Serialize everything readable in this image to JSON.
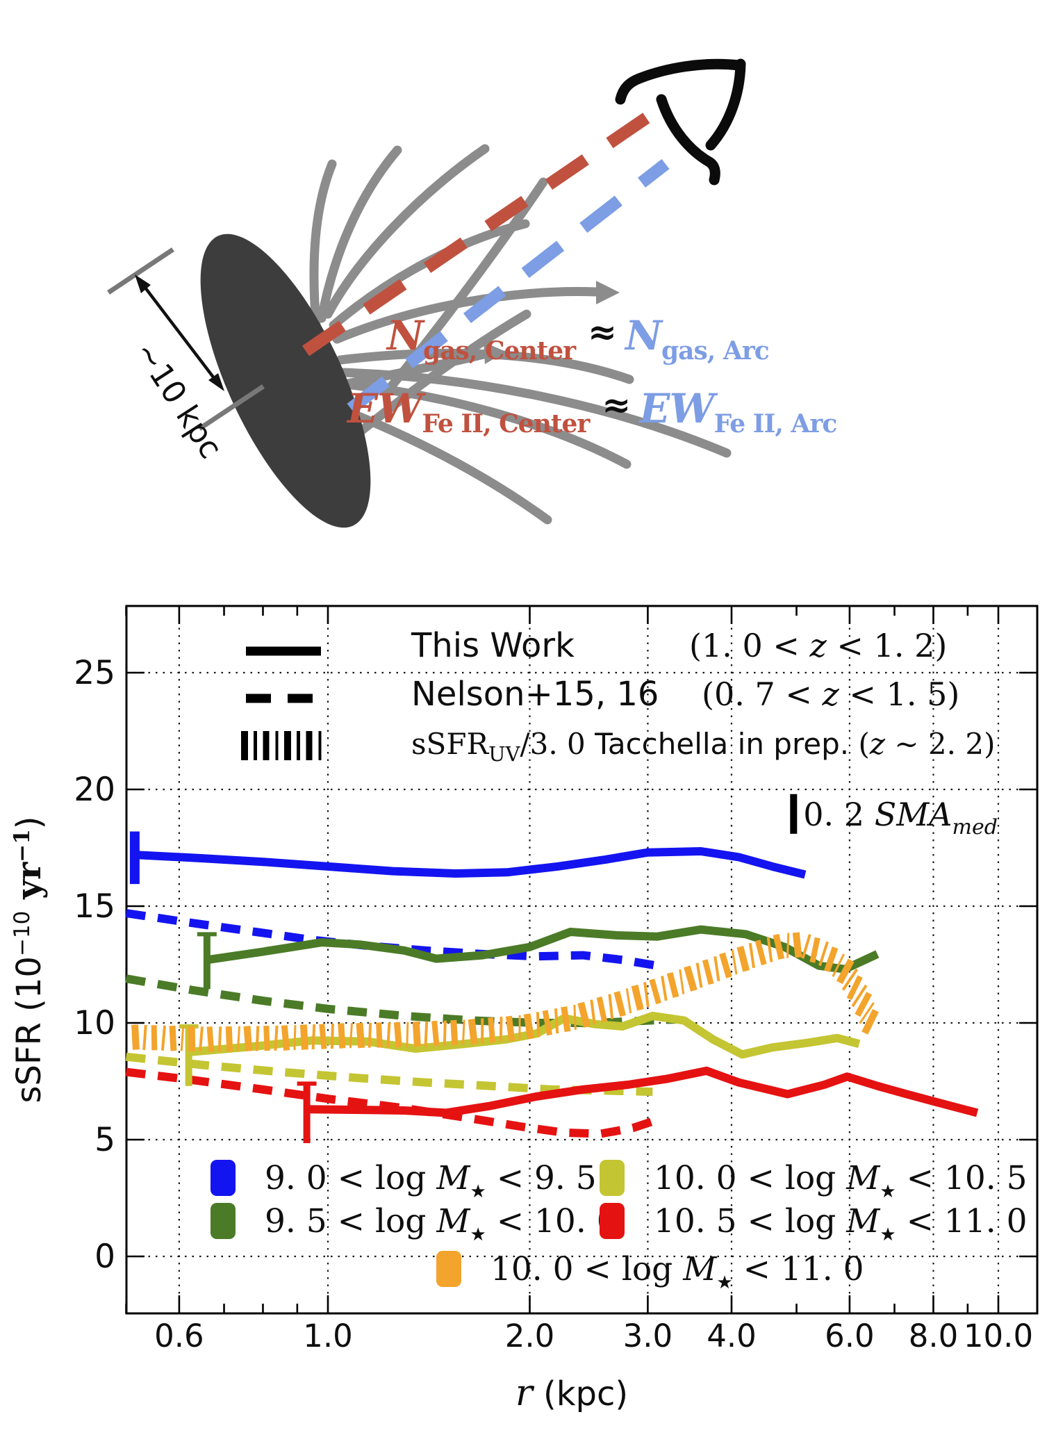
{
  "diagram": {
    "scale_label": "~10 kpc",
    "galaxy_color": "#3d3d3d",
    "gas_color": "#8c8c8c",
    "center_color": "#c0513f",
    "arc_color": "#7d9de4",
    "icons": [
      "eye-icon",
      "galaxy-ellipse",
      "gas-arc",
      "sightline-center-dashed",
      "sightline-arc-dashed",
      "scale-extent-arrow"
    ],
    "equations": [
      {
        "lhs": "N",
        "lhs_sub": "gas, Center",
        "rel": "≈",
        "rhs": "N",
        "rhs_sub": "gas, Arc"
      },
      {
        "lhs": "EW",
        "lhs_sub": "Fe II, Center",
        "rel": "≈",
        "rhs": "EW",
        "rhs_sub": "Fe II, Arc"
      }
    ]
  },
  "chart_data": {
    "type": "line",
    "xscale": "log",
    "xlim": [
      0.5,
      11.4
    ],
    "ylim": [
      -2.4,
      27.9
    ],
    "xlabel_var": "r",
    "xlabel_rest": " (kpc)",
    "ylabel_pre": "sSFR (10",
    "ylabel_sup1": "−10",
    "ylabel_mid": " yr",
    "ylabel_sup2": "−1",
    "ylabel_post": ")",
    "xticks": [
      0.6,
      1.0,
      2.0,
      3.0,
      4.0,
      6.0,
      8.0,
      10.0
    ],
    "xtick_labels": [
      "0.6",
      "1.0",
      "2.0",
      "3.0",
      "4.0",
      "6.0",
      "8.0",
      "10.0"
    ],
    "xminor": [
      0.5,
      0.7,
      0.8,
      0.9,
      5.0,
      7.0,
      9.0
    ],
    "yticks": [
      0,
      5,
      10,
      15,
      20,
      25
    ],
    "ytick_labels": [
      "0",
      "5",
      "10",
      "15",
      "20",
      "25"
    ],
    "grid": "dotted both axes",
    "legend_top": [
      {
        "style": "solid",
        "label": "This Work",
        "zpre": "(1. 0 < ",
        "zvar": "z",
        "zpost": " < 1. 2)"
      },
      {
        "style": "dashed",
        "label": "Nelson+15, 16",
        "zpre": "(0. 7 < ",
        "zvar": "z",
        "zpost": " < 1. 5)"
      },
      {
        "style": "hatch",
        "label_pre": "sSFR",
        "label_sub": "UV",
        "label_mid": "/3. 0 ",
        "label_post": "Tacchella in prep. ",
        "zpre": "(",
        "zvar": "z",
        "zpost": " ∼ 2. 2)"
      }
    ],
    "sma_marker": {
      "num": "0. 2 ",
      "var": "SMA",
      "sub": "med",
      "x": 4.95,
      "y_lo": 18.1,
      "y_hi": 19.8
    },
    "mass_legend": [
      {
        "color": "#1414f0",
        "pre": "9. 0 < log ",
        "var": "M",
        "sub": "★",
        "post": " < 9. 5",
        "col": 1,
        "row": 1
      },
      {
        "color": "#c4c532",
        "pre": "10. 0 < log ",
        "var": "M",
        "sub": "★",
        "post": " < 10. 5",
        "col": 2,
        "row": 1
      },
      {
        "color": "#4b7b27",
        "pre": "9. 5 < log ",
        "var": "M",
        "sub": "★",
        "post": " < 10. 0",
        "col": 1,
        "row": 2
      },
      {
        "color": "#e51212",
        "pre": "10. 5 < log ",
        "var": "M",
        "sub": "★",
        "post": " < 11. 0",
        "col": 2,
        "row": 2
      },
      {
        "color": "#f3a42c",
        "pre": "10. 0 < log ",
        "var": "M",
        "sub": "★",
        "post": " < 11. 0",
        "col": 3,
        "row": 3
      }
    ],
    "series": [
      {
        "id": "nelson-blue",
        "bin": "9.0 < log M★ < 9.5",
        "source": "Nelson+15, 16",
        "style": "dashed",
        "color": "#1414f0",
        "points": [
          [
            0.5,
            14.7
          ],
          [
            0.62,
            14.3
          ],
          [
            0.78,
            13.9
          ],
          [
            0.95,
            13.55
          ],
          [
            1.15,
            13.3
          ],
          [
            1.4,
            13.1
          ],
          [
            1.7,
            12.95
          ],
          [
            2.05,
            12.85
          ],
          [
            2.4,
            12.9
          ],
          [
            2.75,
            12.7
          ],
          [
            3.1,
            12.45
          ]
        ]
      },
      {
        "id": "nelson-green",
        "bin": "9.5 < log M★ < 10.0",
        "source": "Nelson+15, 16",
        "style": "dashed",
        "color": "#4b7b27",
        "points": [
          [
            0.5,
            11.9
          ],
          [
            0.63,
            11.4
          ],
          [
            0.8,
            10.95
          ],
          [
            1.0,
            10.6
          ],
          [
            1.3,
            10.3
          ],
          [
            1.65,
            10.1
          ],
          [
            2.05,
            10.0
          ],
          [
            2.5,
            10.0
          ],
          [
            3.0,
            10.1
          ],
          [
            3.3,
            10.15
          ]
        ]
      },
      {
        "id": "nelson-yellow",
        "bin": "10.0 < log M★ < 10.5",
        "source": "Nelson+15, 16",
        "style": "dashed",
        "color": "#c4c532",
        "points": [
          [
            0.5,
            8.55
          ],
          [
            0.65,
            8.2
          ],
          [
            0.85,
            7.9
          ],
          [
            1.1,
            7.65
          ],
          [
            1.4,
            7.45
          ],
          [
            1.75,
            7.3
          ],
          [
            2.15,
            7.15
          ],
          [
            2.6,
            7.1
          ],
          [
            3.05,
            7.05
          ]
        ]
      },
      {
        "id": "nelson-red",
        "bin": "10.5 < log M★ < 11.0",
        "source": "Nelson+15, 16",
        "style": "dashed",
        "color": "#e51212",
        "points": [
          [
            0.5,
            7.9
          ],
          [
            0.63,
            7.55
          ],
          [
            0.8,
            7.15
          ],
          [
            1.0,
            6.75
          ],
          [
            1.3,
            6.35
          ],
          [
            1.6,
            5.95
          ],
          [
            1.95,
            5.55
          ],
          [
            2.25,
            5.3
          ],
          [
            2.55,
            5.25
          ],
          [
            2.85,
            5.5
          ],
          [
            3.1,
            5.85
          ]
        ]
      },
      {
        "id": "thiswork-blue",
        "bin": "9.0 < log M★ < 9.5",
        "source": "This Work",
        "style": "solid",
        "color": "#1414f0",
        "points": [
          [
            0.515,
            17.2
          ],
          [
            0.65,
            17.05
          ],
          [
            0.8,
            16.9
          ],
          [
            1.0,
            16.7
          ],
          [
            1.25,
            16.5
          ],
          [
            1.55,
            16.4
          ],
          [
            1.85,
            16.45
          ],
          [
            2.2,
            16.7
          ],
          [
            2.6,
            17.0
          ],
          [
            3.0,
            17.3
          ],
          [
            3.6,
            17.35
          ],
          [
            4.1,
            17.1
          ],
          [
            4.6,
            16.7
          ],
          [
            5.15,
            16.35
          ]
        ],
        "err": {
          "x": 0.515,
          "lo": 15.95,
          "hi": 18.2,
          "w": 14,
          "cap": false
        }
      },
      {
        "id": "thiswork-green",
        "bin": "9.5 < log M★ < 10.0",
        "source": "This Work",
        "style": "solid",
        "color": "#4b7b27",
        "points": [
          [
            0.66,
            12.7
          ],
          [
            0.8,
            13.05
          ],
          [
            0.98,
            13.45
          ],
          [
            1.12,
            13.35
          ],
          [
            1.3,
            13.1
          ],
          [
            1.45,
            12.75
          ],
          [
            1.7,
            12.9
          ],
          [
            2.0,
            13.25
          ],
          [
            2.3,
            13.9
          ],
          [
            2.7,
            13.75
          ],
          [
            3.1,
            13.7
          ],
          [
            3.6,
            14.0
          ],
          [
            4.2,
            13.8
          ],
          [
            4.8,
            13.25
          ],
          [
            5.4,
            12.45
          ],
          [
            5.9,
            12.3
          ],
          [
            6.6,
            12.95
          ]
        ],
        "err": {
          "x": 0.66,
          "lo": 11.45,
          "hi": 13.8,
          "w": 10,
          "cap": true
        }
      },
      {
        "id": "thiswork-yellow",
        "bin": "10.0 < log M★ < 10.5",
        "source": "This Work",
        "style": "solid",
        "color": "#c4c532",
        "points": [
          [
            0.62,
            8.75
          ],
          [
            0.78,
            9.0
          ],
          [
            0.95,
            9.25
          ],
          [
            1.15,
            9.2
          ],
          [
            1.35,
            8.9
          ],
          [
            1.6,
            9.1
          ],
          [
            1.85,
            9.3
          ],
          [
            2.05,
            9.55
          ],
          [
            2.25,
            10.2
          ],
          [
            2.5,
            9.95
          ],
          [
            2.75,
            9.85
          ],
          [
            3.05,
            10.3
          ],
          [
            3.4,
            10.1
          ],
          [
            3.75,
            9.3
          ],
          [
            4.15,
            8.65
          ],
          [
            4.6,
            8.95
          ],
          [
            5.2,
            9.15
          ],
          [
            5.75,
            9.35
          ],
          [
            6.2,
            9.1
          ]
        ],
        "err": {
          "x": 0.62,
          "lo": 7.3,
          "hi": 9.85,
          "w": 10,
          "cap": true
        }
      },
      {
        "id": "thiswork-red",
        "bin": "10.5 < log M★ < 11.0",
        "source": "This Work",
        "style": "solid",
        "color": "#e51212",
        "points": [
          [
            0.93,
            6.3
          ],
          [
            1.1,
            6.28
          ],
          [
            1.3,
            6.25
          ],
          [
            1.5,
            6.15
          ],
          [
            1.75,
            6.45
          ],
          [
            2.05,
            6.85
          ],
          [
            2.4,
            7.15
          ],
          [
            2.8,
            7.35
          ],
          [
            3.2,
            7.6
          ],
          [
            3.67,
            7.95
          ],
          [
            4.1,
            7.45
          ],
          [
            4.85,
            6.95
          ],
          [
            5.5,
            7.35
          ],
          [
            5.95,
            7.7
          ],
          [
            6.6,
            7.3
          ],
          [
            7.3,
            6.95
          ],
          [
            8.1,
            6.6
          ],
          [
            9.3,
            6.15
          ]
        ],
        "err": {
          "x": 0.93,
          "lo": 4.85,
          "hi": 7.4,
          "w": 10,
          "cap": true
        }
      },
      {
        "id": "tacchella-orange",
        "bin": "10.0 < log M★ < 11.0",
        "source": "sSFR_UV/3.0 Tacchella in prep.",
        "style": "hatch",
        "color": "#f3a42c",
        "points": [
          [
            0.5,
            9.4
          ],
          [
            0.66,
            9.3
          ],
          [
            0.85,
            9.35
          ],
          [
            1.05,
            9.45
          ],
          [
            1.3,
            9.5
          ],
          [
            1.6,
            9.6
          ],
          [
            1.95,
            9.8
          ],
          [
            2.35,
            10.25
          ],
          [
            2.75,
            10.85
          ],
          [
            3.15,
            11.45
          ],
          [
            3.55,
            12.0
          ],
          [
            3.95,
            12.5
          ],
          [
            4.35,
            12.95
          ],
          [
            4.75,
            13.3
          ],
          [
            5.1,
            13.35
          ],
          [
            5.5,
            12.95
          ],
          [
            5.9,
            12.25
          ],
          [
            6.25,
            11.0
          ],
          [
            6.45,
            10.0
          ]
        ]
      }
    ]
  }
}
